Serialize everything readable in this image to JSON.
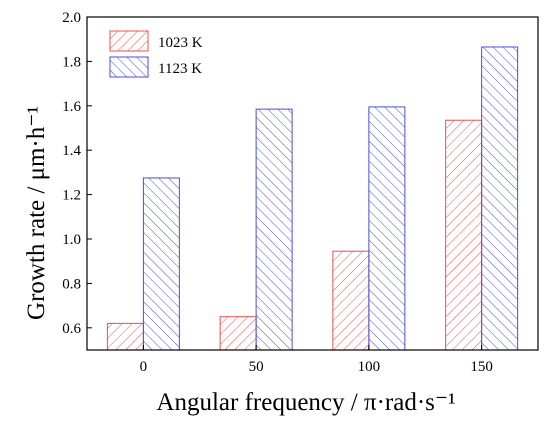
{
  "chart_data": {
    "type": "bar",
    "categories": [
      "0",
      "50",
      "100",
      "150"
    ],
    "series": [
      {
        "name": "1023 K",
        "values": [
          0.62,
          0.65,
          0.945,
          1.535
        ],
        "color": "#e8504f"
      },
      {
        "name": "1123 K",
        "values": [
          1.275,
          1.585,
          1.595,
          1.865
        ],
        "color": "#4a4fd8"
      }
    ],
    "title": "",
    "xlabel": "Angular frequency / π·rad·s⁻¹",
    "ylabel": "Growth rate / μm·h⁻¹",
    "ylim": [
      0.5,
      2.0
    ],
    "yticks": [
      "0.6",
      "0.8",
      "1.0",
      "1.2",
      "1.4",
      "1.6",
      "1.8",
      "2.0"
    ],
    "legend_position": "top-left",
    "grid": false
  }
}
